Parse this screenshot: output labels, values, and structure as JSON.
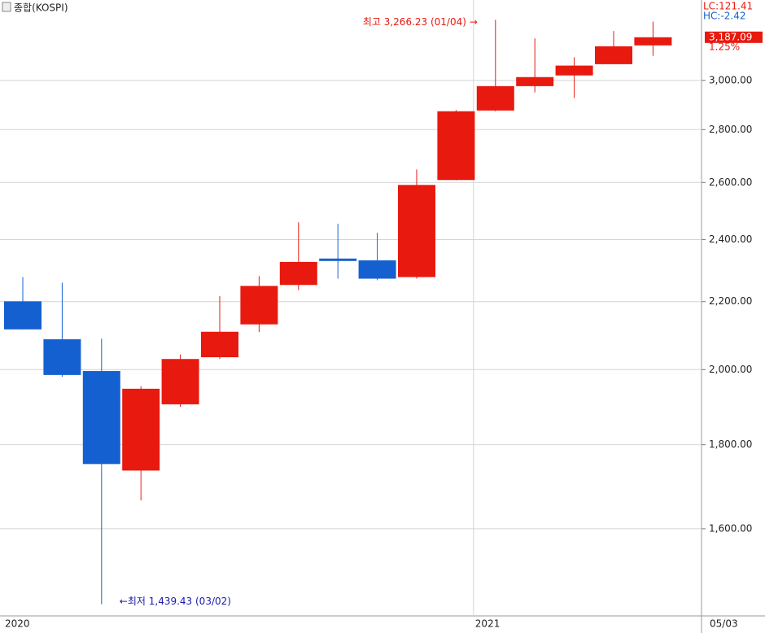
{
  "chart_data": {
    "type": "candlestick",
    "title": "종합(KOSPI)",
    "categories": [
      "2020",
      null,
      null,
      null,
      null,
      null,
      null,
      null,
      null,
      null,
      null,
      null,
      "2021",
      null,
      null,
      null,
      null
    ],
    "date_label": "05/03",
    "open": [
      2201,
      2087,
      1996,
      1736,
      1905,
      2035,
      2131,
      2252,
      2337,
      2331,
      2277,
      2609,
      2876,
      2976,
      3021,
      3069,
      3151
    ],
    "high": [
      2277,
      2259,
      2089,
      1954,
      2043,
      2217,
      2280,
      2459,
      2454,
      2423,
      2648,
      2878,
      3266.23,
      3182,
      3099,
      3215,
      3258
    ],
    "low": [
      2116,
      1980,
      1439.43,
      1665,
      1898,
      2030,
      2108,
      2236,
      2272,
      2267,
      2272,
      2608,
      2873,
      2950,
      2927,
      3069,
      3105
    ],
    "close": [
      2116,
      1985,
      1752,
      1947,
      2030,
      2109,
      2249,
      2326,
      2329,
      2272,
      2591,
      2873,
      2976,
      3014,
      3063,
      3147,
      3187.09
    ],
    "up_color": "#e8190e",
    "down_color": "#1560d0",
    "log_scale": true,
    "grid": true,
    "ylim": [
      1416,
      3358
    ],
    "yticks": [
      {
        "value": 1600,
        "label": "1,600.00"
      },
      {
        "value": 1800,
        "label": "1,800.00"
      },
      {
        "value": 2000,
        "label": "2,000.00"
      },
      {
        "value": 2200,
        "label": "2,200.00"
      },
      {
        "value": 2400,
        "label": "2,400.00"
      },
      {
        "value": 2600,
        "label": "2,600.00"
      },
      {
        "value": 2800,
        "label": "2,800.00"
      },
      {
        "value": 3000,
        "label": "3,000.00"
      }
    ],
    "last_label": "3,187.09",
    "change_label": "1.25%",
    "lc_label": "LC:121.41",
    "hc_label": "HC:-2.42",
    "high_annotation": "최고 3,266.23 (01/04) →",
    "low_annotation": "←최저 1,439.43 (03/02)"
  }
}
